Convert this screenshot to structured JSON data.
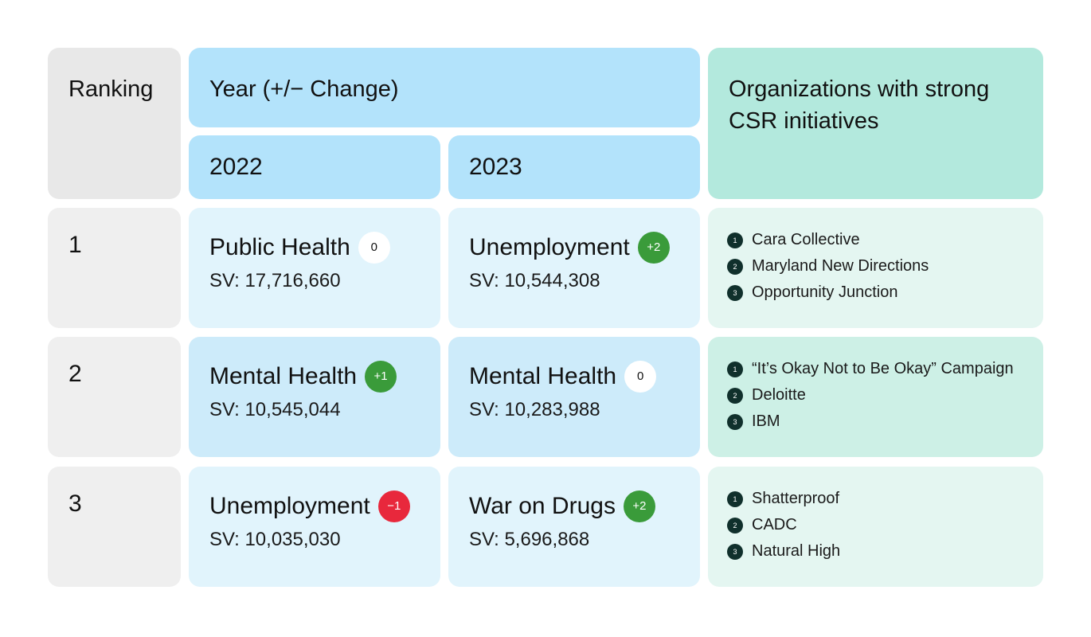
{
  "colors": {
    "ranking_header": "#e8e8e8",
    "year_header": "#b3e3fb",
    "org_header": "#b3e9dd",
    "badge_positive": "#3a9b3a",
    "badge_negative": "#e8283c",
    "badge_zero": "#ffffff",
    "list_number": "#10302c"
  },
  "chart_data": {
    "type": "table",
    "headers": {
      "ranking": "Ranking",
      "year": "Year (+/− Change)",
      "organizations": "Organizations with strong CSR initiatives"
    },
    "years": [
      "2022",
      "2023"
    ],
    "rows": [
      {
        "rank": "1",
        "y2022": {
          "topic": "Public Health",
          "change": "0",
          "sv": "SV: 17,716,660"
        },
        "y2023": {
          "topic": "Unemployment",
          "change": "+2",
          "sv": "SV: 10,544,308"
        },
        "organizations": [
          {
            "n": "1",
            "name": "Cara Collective"
          },
          {
            "n": "2",
            "name": "Maryland New Directions"
          },
          {
            "n": "3",
            "name": "Opportunity Junction"
          }
        ]
      },
      {
        "rank": "2",
        "y2022": {
          "topic": "Mental Health",
          "change": "+1",
          "sv": "SV: 10,545,044"
        },
        "y2023": {
          "topic": "Mental Health",
          "change": "0",
          "sv": "SV: 10,283,988"
        },
        "organizations": [
          {
            "n": "1",
            "name": "“It’s Okay Not to Be Okay” Campaign"
          },
          {
            "n": "2",
            "name": "Deloitte"
          },
          {
            "n": "3",
            "name": "IBM"
          }
        ]
      },
      {
        "rank": "3",
        "y2022": {
          "topic": "Unemployment",
          "change": "−1",
          "sv": "SV: 10,035,030"
        },
        "y2023": {
          "topic": "War on Drugs",
          "change": "+2",
          "sv": "SV: 5,696,868"
        },
        "organizations": [
          {
            "n": "1",
            "name": "Shatterproof"
          },
          {
            "n": "2",
            "name": "CADC"
          },
          {
            "n": "3",
            "name": "Natural High"
          }
        ]
      }
    ]
  }
}
